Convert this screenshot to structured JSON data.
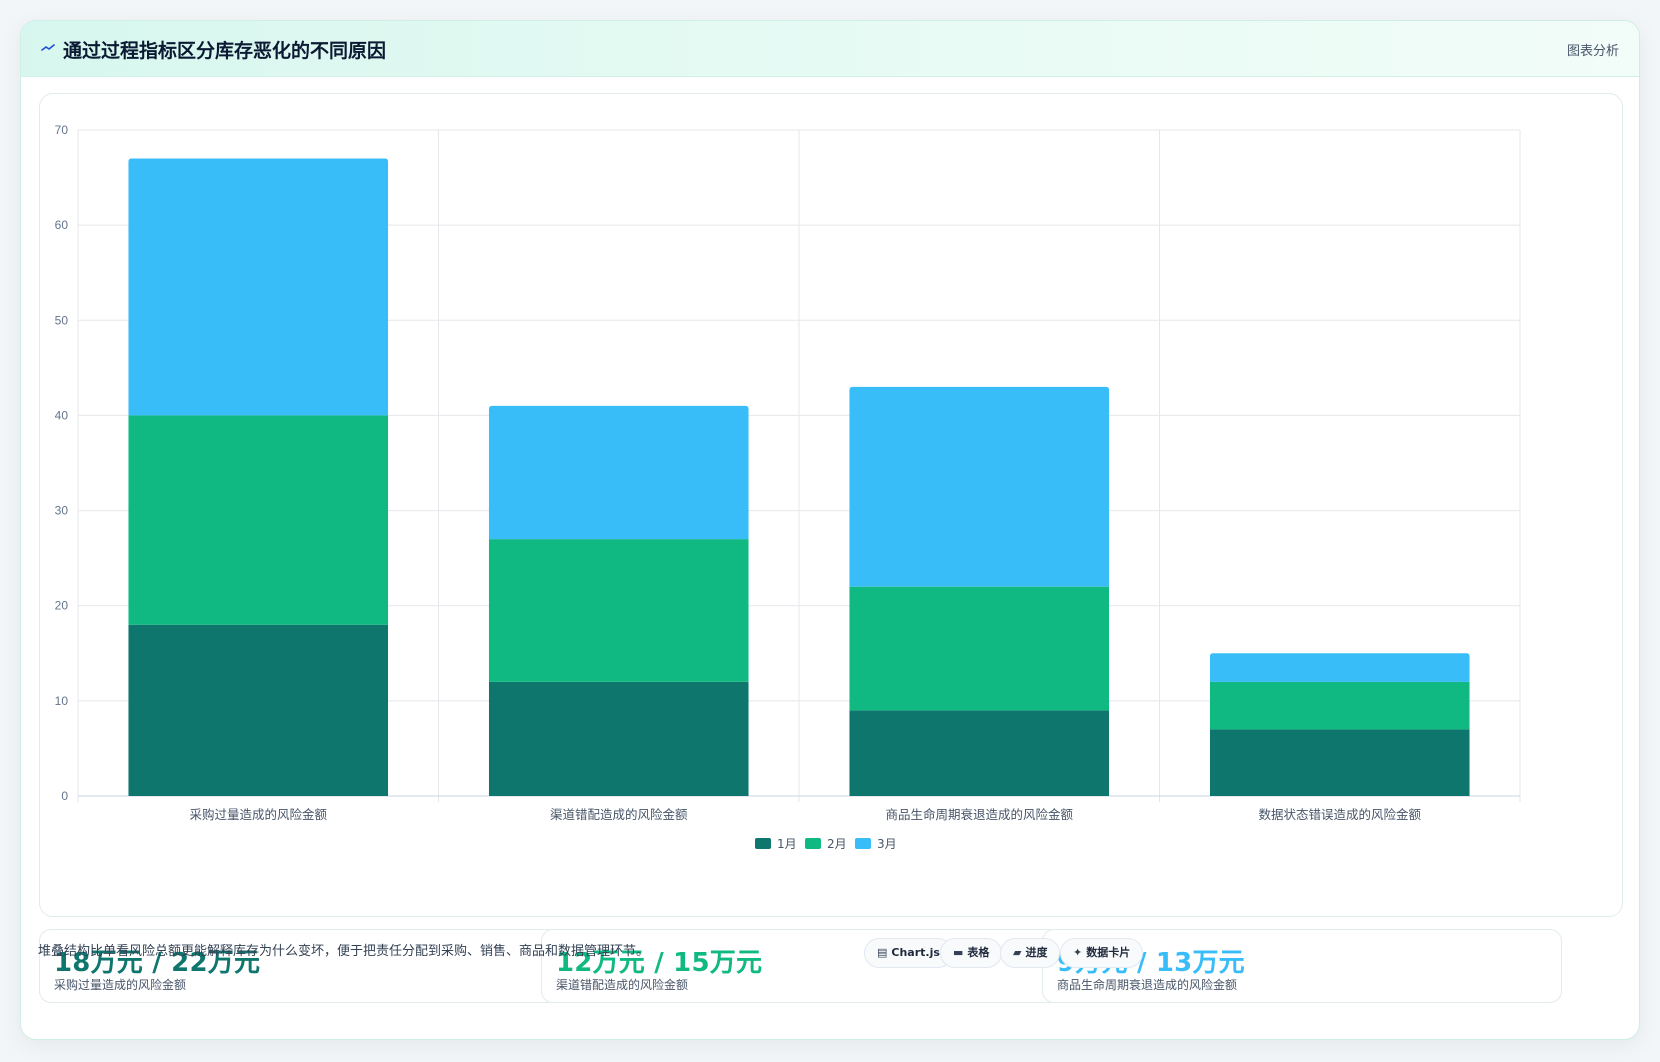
{
  "header": {
    "title": "通过过程指标区分库存恶化的不同原因",
    "title_icon": "trend-wave-icon",
    "action_label": "图表分析"
  },
  "chart_data": {
    "type": "bar",
    "stacked": true,
    "categories": [
      "采购过量造成的风险金额",
      "渠道错配造成的风险金额",
      "商品生命周期衰退造成的风险金额",
      "数据状态错误造成的风险金额"
    ],
    "series": [
      {
        "name": "1月",
        "values": [
          18,
          12,
          9,
          7
        ],
        "color": "#0f766e"
      },
      {
        "name": "2月",
        "values": [
          22,
          15,
          13,
          5
        ],
        "color": "#10b981"
      },
      {
        "name": "3月",
        "values": [
          27,
          14,
          21,
          3
        ],
        "color": "#38bdf8"
      }
    ],
    "ylim": [
      0,
      70
    ],
    "yticks": [
      0,
      10,
      20,
      30,
      40,
      50,
      60,
      70
    ],
    "xlabel": "",
    "ylabel": "",
    "grid": true,
    "legend": "bottom"
  },
  "stats": [
    {
      "value": "18万元 / 22万元",
      "label": "采购过量造成的风险金额",
      "color": "#0f766e"
    },
    {
      "value": "12万元 / 15万元",
      "label": "渠道错配造成的风险金额",
      "color": "#10b981"
    },
    {
      "value": "9万元 / 13万元",
      "label": "商品生命周期衰退造成的风险金额",
      "color": "#38bdf8"
    }
  ],
  "footer": {
    "note": "堆叠结构比单看风险总额更能解释库存为什么变坏，便于把责任分配到采购、销售、商品和数据管理环节。",
    "tags": [
      {
        "label": "Chart.js",
        "glyph": "▤",
        "icon": "chart-icon"
      },
      {
        "label": "表格",
        "glyph": "▬",
        "icon": "table-icon"
      },
      {
        "label": "进度",
        "glyph": "▰",
        "icon": "progress-icon"
      },
      {
        "label": "数据卡片",
        "glyph": "✦",
        "icon": "sparkle-icon"
      }
    ]
  }
}
